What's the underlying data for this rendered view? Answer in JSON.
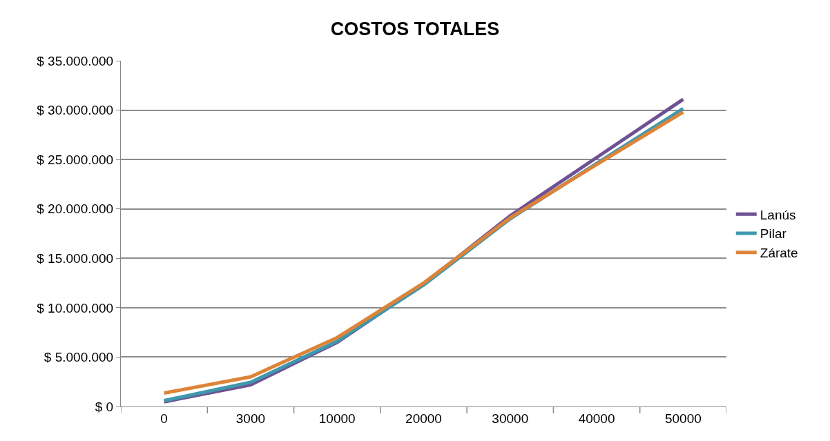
{
  "chart_data": {
    "type": "line",
    "title": "COSTOS TOTALES",
    "categories": [
      "0",
      "3000",
      "10000",
      "20000",
      "30000",
      "40000",
      "50000"
    ],
    "series": [
      {
        "name": "Lanús",
        "color": "#6f5193",
        "values": [
          470000,
          2200000,
          6500000,
          12400000,
          19300000,
          25200000,
          31100000
        ]
      },
      {
        "name": "Pilar",
        "color": "#3f98ae",
        "values": [
          590000,
          2450000,
          6600000,
          12300000,
          19000000,
          24600000,
          30150000
        ]
      },
      {
        "name": "Zárate",
        "color": "#dd8438",
        "values": [
          1360000,
          3000000,
          6970000,
          12500000,
          19100000,
          24500000,
          29800000
        ]
      }
    ],
    "ylim": [
      0,
      35000000
    ],
    "yticks": [
      {
        "value": 0,
        "label": "$ 0"
      },
      {
        "value": 5000000,
        "label": "$ 5.000.000"
      },
      {
        "value": 10000000,
        "label": "$ 10.000.000"
      },
      {
        "value": 15000000,
        "label": "$ 15.000.000"
      },
      {
        "value": 20000000,
        "label": "$ 20.000.000"
      },
      {
        "value": 25000000,
        "label": "$ 25.000.000"
      },
      {
        "value": 30000000,
        "label": "$ 30.000.000"
      },
      {
        "value": 35000000,
        "label": "$ 35.000.000"
      }
    ],
    "grid": "y",
    "legend": "right",
    "marker": "none",
    "line_style": "solid"
  }
}
